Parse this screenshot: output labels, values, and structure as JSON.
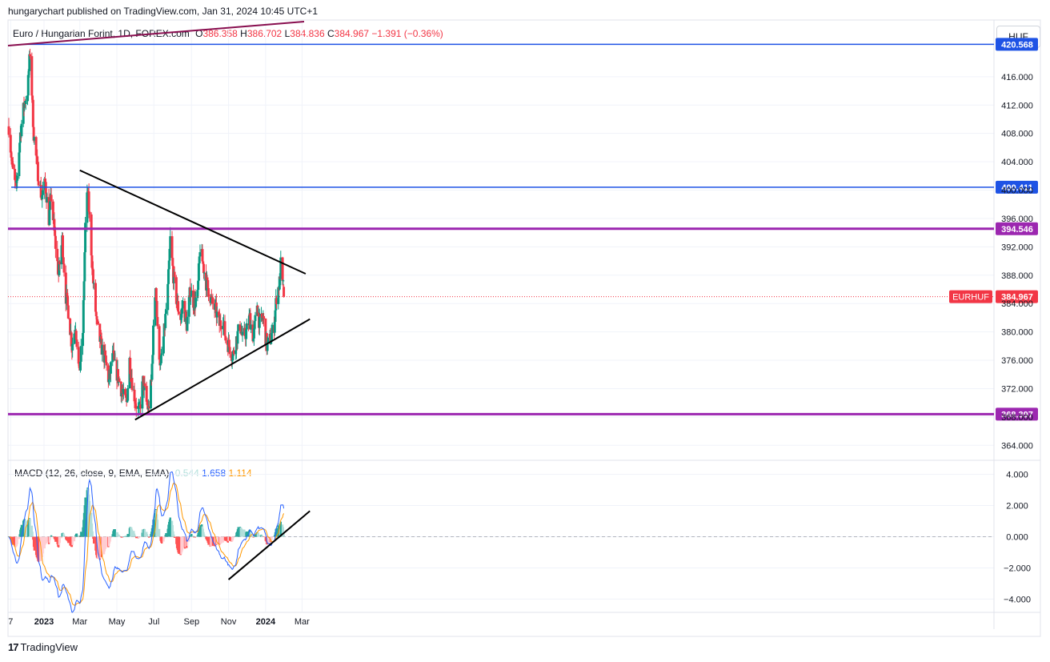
{
  "publisher": "hungarychart published on TradingView.com, Jan 31, 2024 10:45 UTC+1",
  "legend": {
    "title": "Euro / Hungarian Forint, 1D, FOREX.com",
    "o_label": "O",
    "o": "386.358",
    "h_label": "H",
    "h": "386.702",
    "l_label": "L",
    "l": "384.836",
    "c_label": "C",
    "c": "384.967",
    "change": "−1.391 (−0.36%)"
  },
  "currency": "HUF",
  "macd_legend": {
    "label": "MACD (12, 26, close, 9, EMA, EMA)",
    "histogram": "0.544",
    "macd": "1.658",
    "signal": "1.114"
  },
  "tradingview": "TradingView",
  "colors": {
    "up": "#089981",
    "down": "#f23645",
    "hline_blue": "#1e53e5",
    "hline_purple": "#9c27b0",
    "trendline": "#000000",
    "macd": "#2962ff",
    "signal": "#ff9800",
    "hist_up": "#26a69a",
    "hist_up_light": "#b2dfdb",
    "hist_down": "#ff5252",
    "hist_down_light": "#ffcdd2"
  },
  "chart_data": [
    {
      "type": "candlestick",
      "symbol": "EURHUF",
      "last_price": "384.967",
      "ylim": [
        362,
        424
      ],
      "x_ticks": [
        "7",
        "2023",
        "Mar",
        "May",
        "Jul",
        "Sep",
        "Nov",
        "2024",
        "Mar"
      ],
      "y_ticks": [
        "364.000",
        "368.000",
        "372.000",
        "376.000",
        "380.000",
        "384.000",
        "388.000",
        "392.000",
        "396.000",
        "400.000",
        "404.000",
        "408.000",
        "412.000",
        "416.000"
      ],
      "horizontal_levels": [
        {
          "value": 420.568,
          "label": "420.568",
          "color": "blue"
        },
        {
          "value": 400.411,
          "label": "400.411",
          "color": "blue"
        },
        {
          "value": 394.546,
          "label": "394.546",
          "color": "purple"
        },
        {
          "value": 368.397,
          "label": "368.397",
          "color": "purple"
        }
      ],
      "trendlines": [
        {
          "start": [
            "2023-03-01",
            402.8
          ],
          "end": [
            "2024-03-07",
            388.2
          ]
        },
        {
          "start": [
            "2023-05-31",
            367.6
          ],
          "end": [
            "2024-03-14",
            381.8
          ]
        }
      ],
      "anchors": [
        {
          "date": "2022-11-04",
          "close": 409
        },
        {
          "date": "2022-11-10",
          "close": 403
        },
        {
          "date": "2022-11-16",
          "close": 400
        },
        {
          "date": "2022-11-23",
          "close": 408
        },
        {
          "date": "2022-11-29",
          "close": 412
        },
        {
          "date": "2022-12-05",
          "close": 414
        },
        {
          "date": "2022-12-09",
          "close": 419.5
        },
        {
          "date": "2022-12-15",
          "close": 408
        },
        {
          "date": "2022-12-21",
          "close": 403
        },
        {
          "date": "2022-12-28",
          "close": 399
        },
        {
          "date": "2023-01-03",
          "close": 401
        },
        {
          "date": "2023-01-09",
          "close": 396
        },
        {
          "date": "2023-01-13",
          "close": 399
        },
        {
          "date": "2023-01-19",
          "close": 393
        },
        {
          "date": "2023-01-25",
          "close": 388
        },
        {
          "date": "2023-01-31",
          "close": 393
        },
        {
          "date": "2023-02-06",
          "close": 385
        },
        {
          "date": "2023-02-10",
          "close": 383
        },
        {
          "date": "2023-02-16",
          "close": 378
        },
        {
          "date": "2023-02-22",
          "close": 381
        },
        {
          "date": "2023-02-28",
          "close": 374
        },
        {
          "date": "2023-03-06",
          "close": 380
        },
        {
          "date": "2023-03-10",
          "close": 395
        },
        {
          "date": "2023-03-14",
          "close": 400
        },
        {
          "date": "2023-03-17",
          "close": 396
        },
        {
          "date": "2023-03-23",
          "close": 387
        },
        {
          "date": "2023-03-29",
          "close": 381
        },
        {
          "date": "2023-04-05",
          "close": 378
        },
        {
          "date": "2023-04-12",
          "close": 376
        },
        {
          "date": "2023-04-18",
          "close": 373
        },
        {
          "date": "2023-04-24",
          "close": 377
        },
        {
          "date": "2023-04-28",
          "close": 375
        },
        {
          "date": "2023-05-05",
          "close": 373
        },
        {
          "date": "2023-05-11",
          "close": 371
        },
        {
          "date": "2023-05-17",
          "close": 370
        },
        {
          "date": "2023-05-22",
          "close": 376
        },
        {
          "date": "2023-05-26",
          "close": 373
        },
        {
          "date": "2023-06-01",
          "close": 370
        },
        {
          "date": "2023-06-07",
          "close": 368.5
        },
        {
          "date": "2023-06-13",
          "close": 373
        },
        {
          "date": "2023-06-19",
          "close": 370
        },
        {
          "date": "2023-06-22",
          "close": 369
        },
        {
          "date": "2023-06-27",
          "close": 373
        },
        {
          "date": "2023-06-30",
          "close": 380
        },
        {
          "date": "2023-07-04",
          "close": 387
        },
        {
          "date": "2023-07-07",
          "close": 380
        },
        {
          "date": "2023-07-12",
          "close": 375
        },
        {
          "date": "2023-07-18",
          "close": 380
        },
        {
          "date": "2023-07-24",
          "close": 386
        },
        {
          "date": "2023-07-28",
          "close": 393
        },
        {
          "date": "2023-08-02",
          "close": 388
        },
        {
          "date": "2023-08-08",
          "close": 384
        },
        {
          "date": "2023-08-14",
          "close": 382
        },
        {
          "date": "2023-08-18",
          "close": 384
        },
        {
          "date": "2023-08-24",
          "close": 381
        },
        {
          "date": "2023-08-30",
          "close": 386
        },
        {
          "date": "2023-09-05",
          "close": 384
        },
        {
          "date": "2023-09-11",
          "close": 385
        },
        {
          "date": "2023-09-15",
          "close": 392
        },
        {
          "date": "2023-09-19",
          "close": 390
        },
        {
          "date": "2023-09-25",
          "close": 387
        },
        {
          "date": "2023-09-29",
          "close": 386
        },
        {
          "date": "2023-10-05",
          "close": 384
        },
        {
          "date": "2023-10-11",
          "close": 383
        },
        {
          "date": "2023-10-17",
          "close": 381
        },
        {
          "date": "2023-10-23",
          "close": 382
        },
        {
          "date": "2023-10-27",
          "close": 379
        },
        {
          "date": "2023-11-02",
          "close": 378
        },
        {
          "date": "2023-11-08",
          "close": 376.5
        },
        {
          "date": "2023-11-14",
          "close": 379
        },
        {
          "date": "2023-11-20",
          "close": 381
        },
        {
          "date": "2023-11-24",
          "close": 379
        },
        {
          "date": "2023-11-30",
          "close": 380
        },
        {
          "date": "2023-12-06",
          "close": 382
        },
        {
          "date": "2023-12-12",
          "close": 379
        },
        {
          "date": "2023-12-18",
          "close": 384
        },
        {
          "date": "2023-12-22",
          "close": 381
        },
        {
          "date": "2023-12-28",
          "close": 382
        },
        {
          "date": "2024-01-03",
          "close": 378
        },
        {
          "date": "2024-01-09",
          "close": 379
        },
        {
          "date": "2024-01-15",
          "close": 381
        },
        {
          "date": "2024-01-19",
          "close": 385
        },
        {
          "date": "2024-01-24",
          "close": 387
        },
        {
          "date": "2024-01-26",
          "close": 389.5
        },
        {
          "date": "2024-01-29",
          "close": 386.4
        },
        {
          "date": "2024-01-30",
          "close": 386.358
        },
        {
          "date": "2024-01-31",
          "open": 386.358,
          "high": 386.702,
          "low": 384.836,
          "close": 384.967
        }
      ]
    },
    {
      "type": "macd",
      "ylim": [
        -4.8,
        4.8
      ],
      "y_ticks": [
        "4.000",
        "2.000",
        "0.000",
        "−2.000",
        "−4.000"
      ],
      "last": {
        "histogram": 0.544,
        "macd": 1.658,
        "signal": 1.114
      },
      "trendline": {
        "start": [
          "2023-11-01",
          -2.75
        ],
        "end": [
          "2024-03-14",
          1.65
        ]
      }
    }
  ]
}
